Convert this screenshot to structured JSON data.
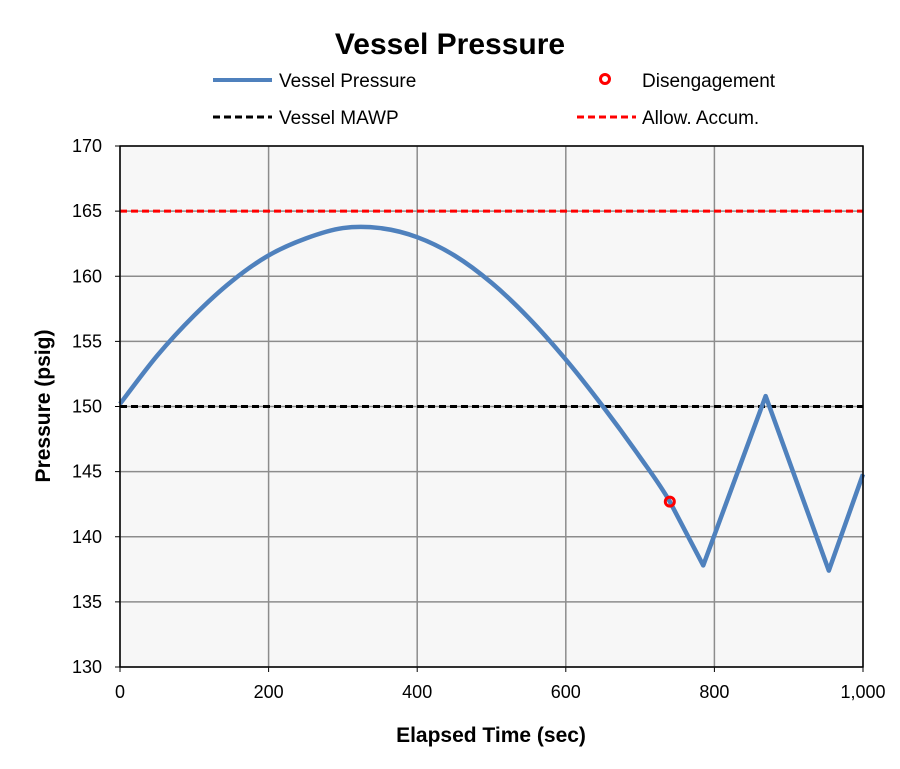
{
  "chart_data": {
    "type": "line",
    "title": "Vessel Pressure",
    "xlabel": "Elapsed Time (sec)",
    "ylabel": "Pressure (psig)",
    "xlim": [
      0,
      1000
    ],
    "ylim": [
      130,
      170
    ],
    "x_ticks": [
      "0",
      "200",
      "400",
      "600",
      "800",
      "1,000"
    ],
    "x_tick_values": [
      0,
      200,
      400,
      600,
      800,
      1000
    ],
    "y_ticks": [
      "130",
      "135",
      "140",
      "145",
      "150",
      "155",
      "160",
      "165",
      "170"
    ],
    "y_tick_values": [
      130,
      135,
      140,
      145,
      150,
      155,
      160,
      165,
      170
    ],
    "grid": true,
    "legend_position": "top",
    "series": [
      {
        "name": "Vessel Pressure",
        "color": "#4f81bd",
        "style": "solid",
        "x": [
          0,
          50,
          100,
          150,
          200,
          250,
          300,
          350,
          400,
          450,
          500,
          550,
          600,
          650,
          700,
          740,
          785,
          869,
          954,
          1000
        ],
        "y": [
          150.2,
          153.9,
          157.0,
          159.6,
          161.6,
          162.9,
          163.7,
          163.7,
          163.0,
          161.6,
          159.5,
          156.8,
          153.6,
          150.0,
          146.1,
          142.7,
          137.8,
          150.8,
          137.4,
          144.8
        ]
      },
      {
        "name": "Disengagement",
        "color": "#ff0000",
        "style": "marker",
        "x": [
          740
        ],
        "y": [
          142.7
        ]
      },
      {
        "name": "Vessel MAWP",
        "color": "#000000",
        "style": "dashed",
        "x": [
          0,
          1000
        ],
        "y": [
          150,
          150
        ]
      },
      {
        "name": "Allow. Accum.",
        "color": "#ff0000",
        "style": "dashed",
        "x": [
          0,
          1000
        ],
        "y": [
          165,
          165
        ]
      }
    ]
  }
}
